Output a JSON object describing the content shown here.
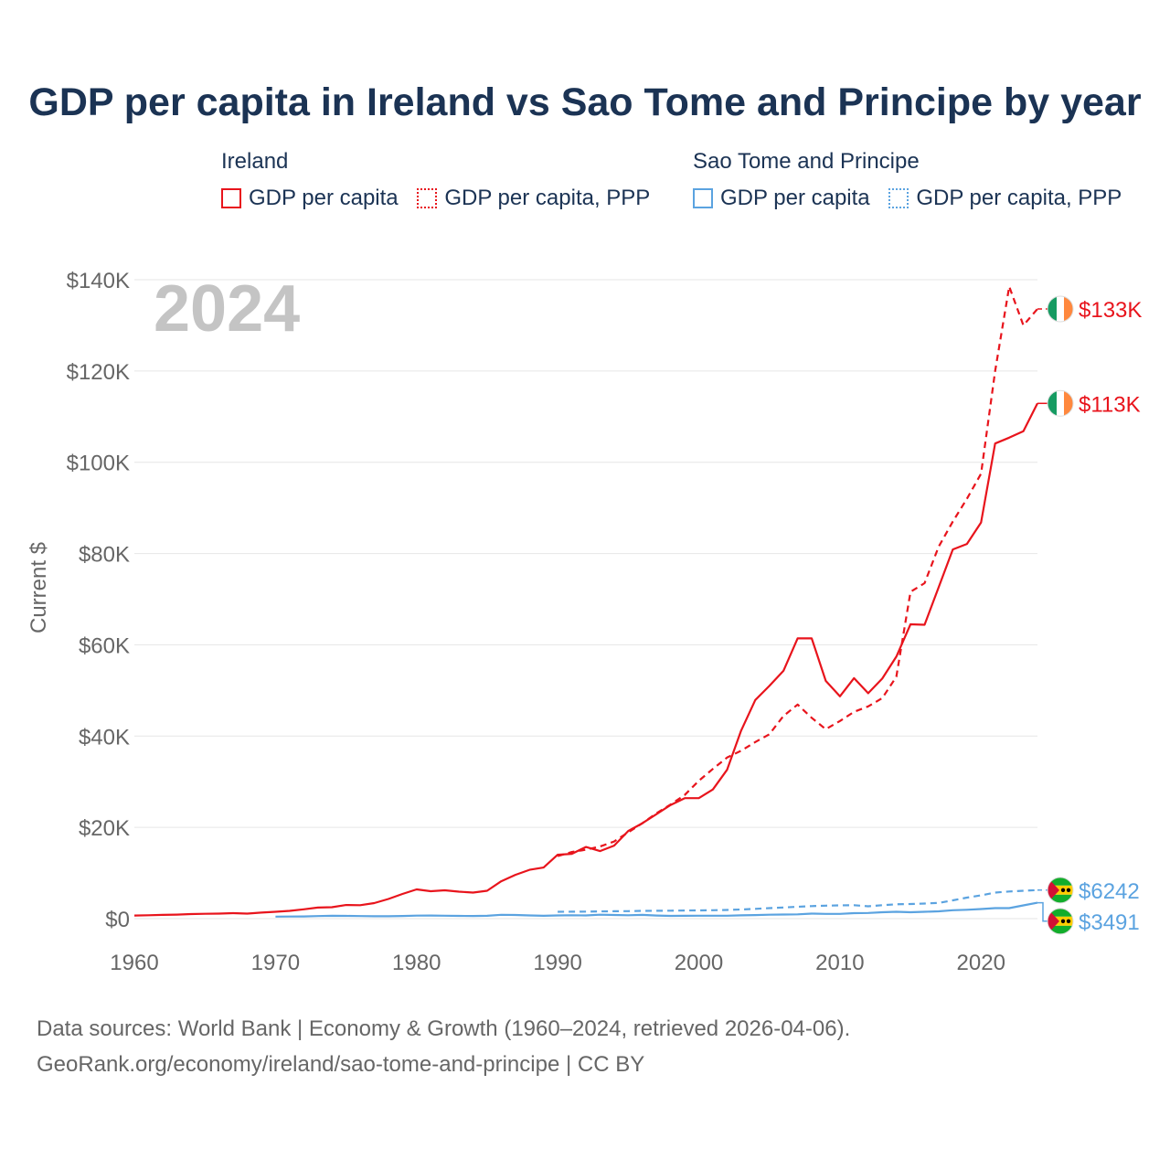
{
  "chart_data": {
    "type": "line",
    "title": "GDP per capita in Ireland vs Sao Tome and Principe by year",
    "ylabel": "Current $",
    "xlabel": "",
    "year_overlay": "2024",
    "xlim": [
      1960,
      2024
    ],
    "ylim": [
      0,
      140000
    ],
    "x_ticks": [
      {
        "value": 1960,
        "label": "1960"
      },
      {
        "value": 1970,
        "label": "1970"
      },
      {
        "value": 1980,
        "label": "1980"
      },
      {
        "value": 1990,
        "label": "1990"
      },
      {
        "value": 2000,
        "label": "2000"
      },
      {
        "value": 2010,
        "label": "2010"
      },
      {
        "value": 2020,
        "label": "2020"
      }
    ],
    "y_ticks": [
      {
        "value": 0,
        "label": "$0"
      },
      {
        "value": 20000,
        "label": "$20K"
      },
      {
        "value": 40000,
        "label": "$40K"
      },
      {
        "value": 60000,
        "label": "$60K"
      },
      {
        "value": 80000,
        "label": "$80K"
      },
      {
        "value": 100000,
        "label": "$100K"
      },
      {
        "value": 120000,
        "label": "$120K"
      },
      {
        "value": 140000,
        "label": "$140K"
      }
    ],
    "grid": true,
    "legend_groups": [
      {
        "name": "Ireland",
        "items": [
          {
            "label": "GDP per capita",
            "style": "solid",
            "color": "#e8141c"
          },
          {
            "label": "GDP per capita, PPP",
            "style": "dotted",
            "color": "#e8141c"
          }
        ]
      },
      {
        "name": "Sao Tome and Principe",
        "items": [
          {
            "label": "GDP per capita",
            "style": "solid",
            "color": "#5ba3e0"
          },
          {
            "label": "GDP per capita, PPP",
            "style": "dotted",
            "color": "#5ba3e0"
          }
        ]
      }
    ],
    "series": [
      {
        "name": "Ireland GDP per capita",
        "country": "Ireland",
        "color": "#e8141c",
        "dash": false,
        "end_label": "$113K",
        "flag": "ireland",
        "x": [
          1960,
          1961,
          1962,
          1963,
          1964,
          1965,
          1966,
          1967,
          1968,
          1969,
          1970,
          1971,
          1972,
          1973,
          1974,
          1975,
          1976,
          1977,
          1978,
          1979,
          1980,
          1981,
          1982,
          1983,
          1984,
          1985,
          1986,
          1987,
          1988,
          1989,
          1990,
          1991,
          1992,
          1993,
          1994,
          1995,
          1996,
          1997,
          1998,
          1999,
          2000,
          2001,
          2002,
          2003,
          2004,
          2005,
          2006,
          2007,
          2008,
          2009,
          2010,
          2011,
          2012,
          2013,
          2014,
          2015,
          2016,
          2017,
          2018,
          2019,
          2020,
          2021,
          2022,
          2023,
          2024
        ],
        "values": [
          690,
          750,
          820,
          880,
          1000,
          1060,
          1100,
          1200,
          1110,
          1330,
          1500,
          1700,
          2050,
          2430,
          2500,
          2980,
          2950,
          3400,
          4300,
          5400,
          6400,
          6000,
          6200,
          5900,
          5700,
          6100,
          8200,
          9600,
          10700,
          11200,
          14000,
          14200,
          15700,
          14800,
          16000,
          19200,
          20900,
          22900,
          24900,
          26400,
          26400,
          28300,
          32600,
          41200,
          47900,
          51000,
          54300,
          61400,
          61400,
          52100,
          48700,
          52700,
          49400,
          52600,
          57400,
          64500,
          64400,
          72600,
          80900,
          82100,
          86800,
          104100,
          105400,
          106800,
          112900
        ]
      },
      {
        "name": "Ireland GDP per capita, PPP",
        "country": "Ireland",
        "color": "#e8141c",
        "dash": true,
        "end_label": "$133K",
        "flag": "ireland",
        "x": [
          1990,
          1991,
          1992,
          1993,
          1994,
          1995,
          1996,
          1997,
          1998,
          1999,
          2000,
          2001,
          2002,
          2003,
          2004,
          2005,
          2006,
          2007,
          2008,
          2009,
          2010,
          2011,
          2012,
          2013,
          2014,
          2015,
          2016,
          2017,
          2018,
          2019,
          2020,
          2021,
          2022,
          2023,
          2024
        ],
        "values": [
          13700,
          14600,
          15100,
          15800,
          16900,
          18900,
          20900,
          23100,
          25000,
          27100,
          30200,
          32800,
          35300,
          36800,
          38700,
          40400,
          44400,
          46900,
          44000,
          41500,
          43300,
          45300,
          46500,
          48300,
          53000,
          71600,
          73500,
          81500,
          87000,
          92000,
          97500,
          120000,
          138500,
          130000,
          133600
        ]
      },
      {
        "name": "Sao Tome and Principe GDP per capita",
        "country": "Sao Tome and Principe",
        "color": "#5ba3e0",
        "dash": false,
        "end_label": "$3491",
        "flag": "sao-tome",
        "x": [
          1970,
          1971,
          1972,
          1973,
          1974,
          1975,
          1976,
          1977,
          1978,
          1979,
          1980,
          1981,
          1982,
          1983,
          1984,
          1985,
          1986,
          1987,
          1988,
          1989,
          1990,
          1991,
          1992,
          1993,
          1994,
          1995,
          1996,
          1997,
          1998,
          1999,
          2000,
          2001,
          2002,
          2003,
          2004,
          2005,
          2006,
          2007,
          2008,
          2009,
          2010,
          2011,
          2012,
          2013,
          2014,
          2015,
          2016,
          2017,
          2018,
          2019,
          2020,
          2021,
          2022,
          2023,
          2024
        ],
        "values": [
          450,
          460,
          480,
          560,
          620,
          600,
          570,
          520,
          520,
          580,
          660,
          680,
          650,
          600,
          580,
          620,
          850,
          800,
          700,
          620,
          700,
          750,
          700,
          860,
          800,
          750,
          830,
          680,
          600,
          620,
          650,
          640,
          640,
          720,
          780,
          860,
          900,
          950,
          1100,
          1050,
          1050,
          1200,
          1250,
          1400,
          1500,
          1400,
          1500,
          1600,
          1850,
          1950,
          2100,
          2300,
          2300,
          2900,
          3491
        ]
      },
      {
        "name": "Sao Tome and Principe GDP per capita, PPP",
        "country": "Sao Tome and Principe",
        "color": "#5ba3e0",
        "dash": true,
        "end_label": "$6242",
        "flag": "sao-tome",
        "x": [
          1990,
          1991,
          1992,
          1993,
          1994,
          1995,
          1996,
          1997,
          1998,
          1999,
          2000,
          2001,
          2002,
          2003,
          2004,
          2005,
          2006,
          2007,
          2008,
          2009,
          2010,
          2011,
          2012,
          2013,
          2014,
          2015,
          2016,
          2017,
          2018,
          2019,
          2020,
          2021,
          2022,
          2023,
          2024
        ],
        "values": [
          1500,
          1520,
          1550,
          1580,
          1620,
          1650,
          1700,
          1720,
          1750,
          1780,
          1800,
          1850,
          1900,
          2000,
          2150,
          2300,
          2450,
          2600,
          2750,
          2850,
          2900,
          2950,
          2700,
          2950,
          3150,
          3200,
          3300,
          3450,
          4000,
          4600,
          5100,
          5700,
          5950,
          6100,
          6242
        ]
      }
    ]
  },
  "flag_colors": {
    "ireland": [
      "#169b62",
      "#ffffff",
      "#ff883e"
    ],
    "sao-tome": [
      "#12ad2b",
      "#ffce00",
      "#d21034",
      "#000000"
    ]
  },
  "footer": {
    "line1": "Data sources: World Bank | Economy & Growth (1960–2024, retrieved 2026-04-06).",
    "line2": "GeoRank.org/economy/ireland/sao-tome-and-principe | CC BY"
  }
}
